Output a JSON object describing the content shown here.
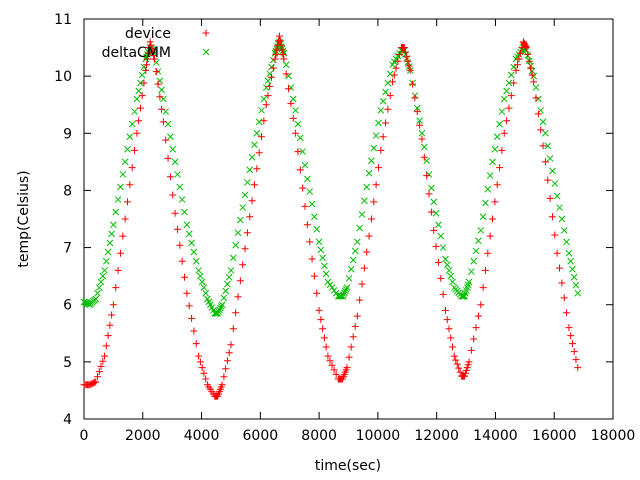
{
  "chart_data": {
    "type": "scatter",
    "xlabel": "time(sec)",
    "ylabel": "temp(Celsius)",
    "xlim": [
      0,
      18000
    ],
    "ylim": [
      4,
      11
    ],
    "x_ticks": [
      0,
      2000,
      4000,
      6000,
      8000,
      10000,
      12000,
      14000,
      16000,
      18000
    ],
    "y_ticks": [
      4,
      5,
      6,
      7,
      8,
      9,
      10,
      11
    ],
    "x_tick_labels": [
      "0",
      "2000",
      "4000",
      "6000",
      "8000",
      "10000",
      "12000",
      "14000",
      "16000",
      "18000"
    ],
    "y_tick_labels": [
      "4",
      "5",
      "6",
      "7",
      "8",
      "9",
      "10",
      "11"
    ],
    "grid": false,
    "legend_position": "top-left",
    "series": [
      {
        "name": "device",
        "marker": "plus",
        "color": "#ff0000",
        "x": [
          0,
          200,
          400,
          700,
          1000,
          1400,
          1800,
          2100,
          2250,
          2400,
          2700,
          3100,
          3500,
          3900,
          4200,
          4450,
          4550,
          4700,
          5000,
          5400,
          5800,
          6200,
          6500,
          6650,
          6800,
          7200,
          7600,
          8000,
          8300,
          8650,
          8800,
          8950,
          9300,
          9700,
          10100,
          10500,
          10800,
          10900,
          11100,
          11500,
          11900,
          12300,
          12600,
          12850,
          12950,
          13100,
          13500,
          13900,
          14300,
          14700,
          14950,
          15050,
          15300,
          15700,
          16100,
          16500,
          16800
        ],
        "y": [
          4.6,
          4.6,
          4.65,
          5.1,
          6.0,
          7.5,
          9.0,
          10.1,
          10.6,
          10.3,
          9.2,
          7.6,
          6.2,
          5.1,
          4.6,
          4.4,
          4.4,
          4.6,
          5.3,
          6.7,
          8.1,
          9.5,
          10.3,
          10.7,
          10.3,
          9.0,
          7.4,
          5.9,
          5.1,
          4.7,
          4.7,
          4.9,
          5.8,
          7.2,
          8.7,
          9.9,
          10.5,
          10.5,
          10.1,
          8.9,
          7.3,
          5.9,
          5.1,
          4.75,
          4.75,
          5.0,
          6.0,
          7.5,
          9.0,
          10.1,
          10.6,
          10.5,
          9.9,
          8.5,
          6.9,
          5.6,
          4.9
        ]
      },
      {
        "name": "deltaCMM",
        "marker": "cross",
        "color": "#00c000",
        "x": [
          0,
          200,
          400,
          700,
          1000,
          1400,
          1800,
          2100,
          2250,
          2400,
          2700,
          3100,
          3500,
          3900,
          4200,
          4450,
          4550,
          4700,
          5000,
          5400,
          5800,
          6200,
          6500,
          6650,
          6800,
          7200,
          7600,
          8000,
          8300,
          8650,
          8800,
          8950,
          9300,
          9700,
          10100,
          10500,
          10800,
          10900,
          11100,
          11500,
          11900,
          12300,
          12600,
          12850,
          12950,
          13100,
          13500,
          13900,
          14300,
          14700,
          14950,
          15050,
          15300,
          15700,
          16100,
          16500,
          16800
        ],
        "y": [
          6.05,
          6.0,
          6.1,
          6.6,
          7.4,
          8.5,
          9.6,
          10.3,
          10.5,
          10.4,
          9.6,
          8.5,
          7.4,
          6.6,
          6.1,
          5.85,
          5.85,
          6.0,
          6.6,
          7.7,
          8.8,
          9.8,
          10.4,
          10.6,
          10.4,
          9.4,
          8.2,
          7.1,
          6.4,
          6.15,
          6.15,
          6.3,
          7.1,
          8.3,
          9.4,
          10.2,
          10.45,
          10.45,
          10.1,
          9.0,
          7.8,
          6.8,
          6.3,
          6.15,
          6.15,
          6.4,
          7.3,
          8.5,
          9.6,
          10.3,
          10.5,
          10.45,
          10.0,
          9.0,
          7.9,
          6.9,
          6.2
        ]
      }
    ]
  }
}
